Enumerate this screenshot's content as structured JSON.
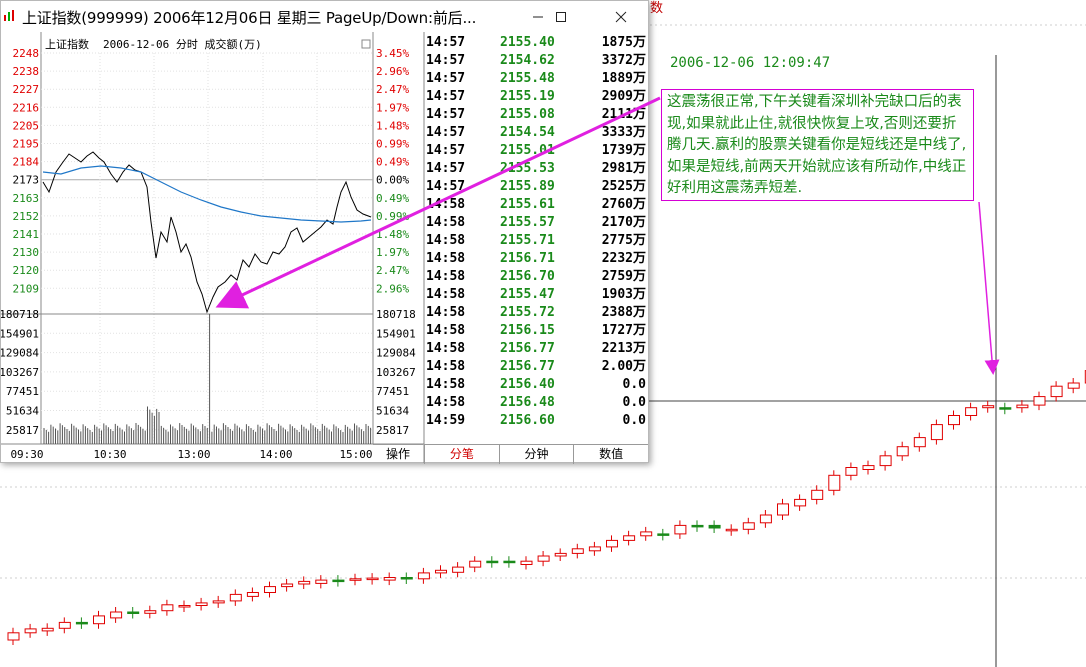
{
  "window": {
    "title": "上证指数(999999) 2006年12月06日 星期三 PageUp/Down:前后..."
  },
  "header": {
    "name": "上证指数",
    "date_label": "2006-12-06 分时 成交额(万)"
  },
  "price_axis": [
    "2248",
    "2238",
    "2227",
    "2216",
    "2205",
    "2195",
    "2184",
    "2173",
    "2163",
    "2152",
    "2141",
    "2130",
    "2120",
    "2109"
  ],
  "pct_axis": [
    "3.45%",
    "2.96%",
    "2.47%",
    "1.97%",
    "1.48%",
    "0.99%",
    "0.49%",
    "0.00%",
    "0.49%",
    "0.99%",
    "1.48%",
    "1.97%",
    "2.47%",
    "2.96%"
  ],
  "vol_axis": [
    "180718",
    "154901",
    "129084",
    "103267",
    "77451",
    "51634",
    "25817"
  ],
  "time_axis": [
    "09:30",
    "10:30",
    "13:00",
    "14:00",
    "15:00"
  ],
  "ops_label": "操作",
  "tabs": [
    "分笔",
    "分钟",
    "数值"
  ],
  "ticks": [
    {
      "t": "14:57",
      "p": "2155.40",
      "v": "1875万"
    },
    {
      "t": "14:57",
      "p": "2154.62",
      "v": "3372万"
    },
    {
      "t": "14:57",
      "p": "2155.48",
      "v": "1889万"
    },
    {
      "t": "14:57",
      "p": "2155.19",
      "v": "2909万"
    },
    {
      "t": "14:57",
      "p": "2155.08",
      "v": "2111万"
    },
    {
      "t": "14:57",
      "p": "2154.54",
      "v": "3333万"
    },
    {
      "t": "14:57",
      "p": "2155.01",
      "v": "1739万"
    },
    {
      "t": "14:57",
      "p": "2155.53",
      "v": "2981万"
    },
    {
      "t": "14:57",
      "p": "2155.89",
      "v": "2525万"
    },
    {
      "t": "14:58",
      "p": "2155.61",
      "v": "2760万"
    },
    {
      "t": "14:58",
      "p": "2155.57",
      "v": "2170万"
    },
    {
      "t": "14:58",
      "p": "2155.71",
      "v": "2775万"
    },
    {
      "t": "14:58",
      "p": "2156.71",
      "v": "2232万"
    },
    {
      "t": "14:58",
      "p": "2156.70",
      "v": "2759万"
    },
    {
      "t": "14:58",
      "p": "2155.47",
      "v": "1903万"
    },
    {
      "t": "14:58",
      "p": "2155.72",
      "v": "2388万"
    },
    {
      "t": "14:58",
      "p": "2156.15",
      "v": "1727万"
    },
    {
      "t": "14:58",
      "p": "2156.77",
      "v": "2213万"
    },
    {
      "t": "14:58",
      "p": "2156.77",
      "v": "2.00万"
    },
    {
      "t": "14:58",
      "p": "2156.40",
      "v": "0.0"
    },
    {
      "t": "14:58",
      "p": "2156.48",
      "v": "0.0"
    },
    {
      "t": "14:59",
      "p": "2156.60",
      "v": "0.0"
    }
  ],
  "background": {
    "datetime": "2006-12-06  12:09:47",
    "top_fragment": "数"
  },
  "annotation": {
    "text": "这震荡很正常,下午关键看深圳补完缺口后的表现,如果就此止住,就很快恢复上攻,否则还要折腾几天.赢利的股票关键看你是短线还是中线了,如果是短线,前两天开始就应该有所动作,中线正好利用这震荡弄短差."
  },
  "colors": {
    "up": "#e00000",
    "down": "#1a8a1a",
    "avg_line": "#1f77c8",
    "arrow": "#e020e0"
  }
}
